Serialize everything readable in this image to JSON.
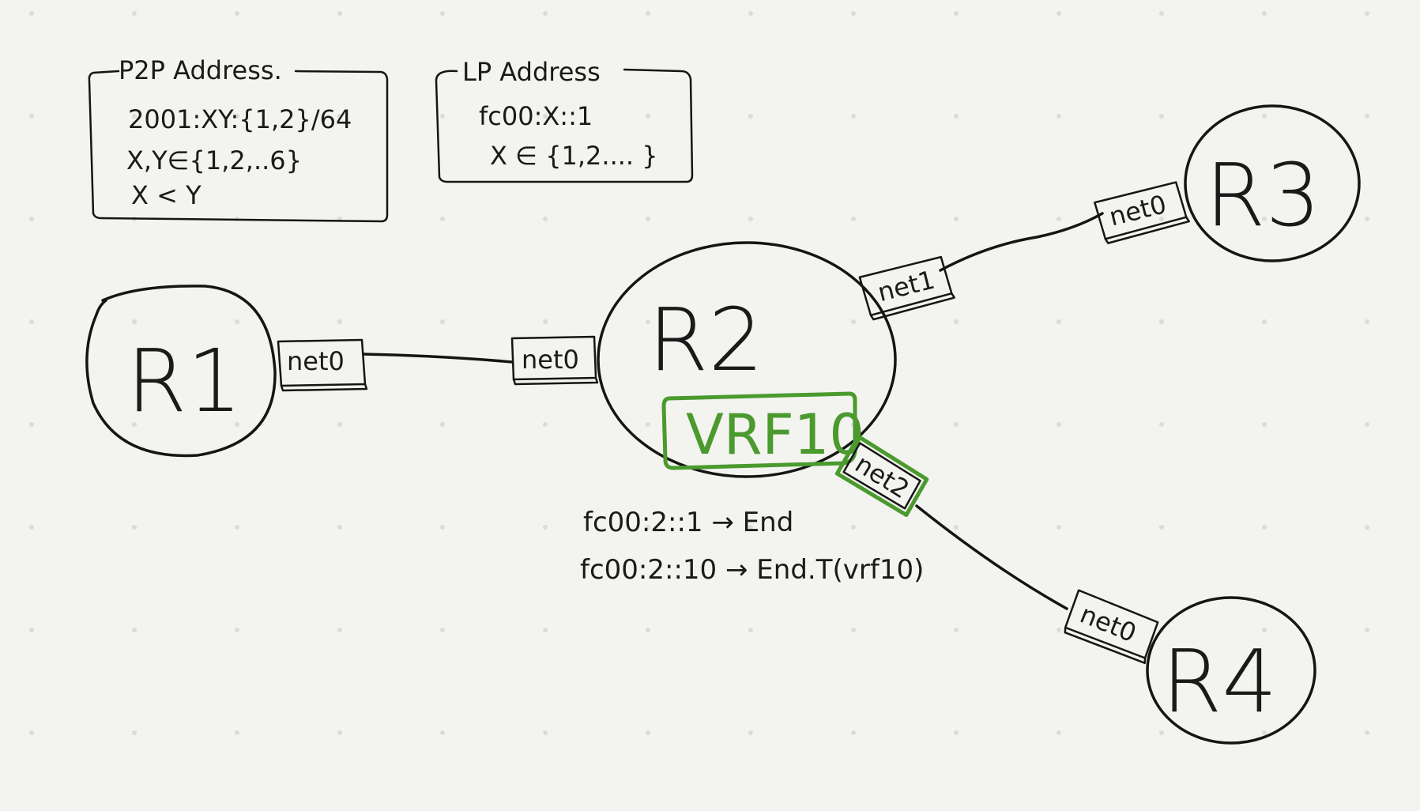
{
  "p2p_box": {
    "title": "P2P Address.",
    "lines": [
      "2001:XY:{1,2}/64",
      "X,Y∈{1,2,..6}",
      "X < Y"
    ]
  },
  "lp_box": {
    "title": "LP Address",
    "lines": [
      "fc00:X::1",
      "X ∈ {1,2.... }"
    ]
  },
  "routers": {
    "r1": {
      "label": "R1"
    },
    "r2": {
      "label": "R2"
    },
    "r3": {
      "label": "R3"
    },
    "r4": {
      "label": "R4"
    }
  },
  "ports": {
    "r1_net0": "net0",
    "r2_net0": "net0",
    "r2_net1": "net1",
    "r2_net2": "net2",
    "r3_net0": "net0",
    "r4_net0": "net0"
  },
  "vrf": {
    "label": "VRF10",
    "color": "#4a9a2e"
  },
  "routes": [
    "fc00:2::1 → End",
    "fc00:2::10 → End.T(vrf10)"
  ]
}
